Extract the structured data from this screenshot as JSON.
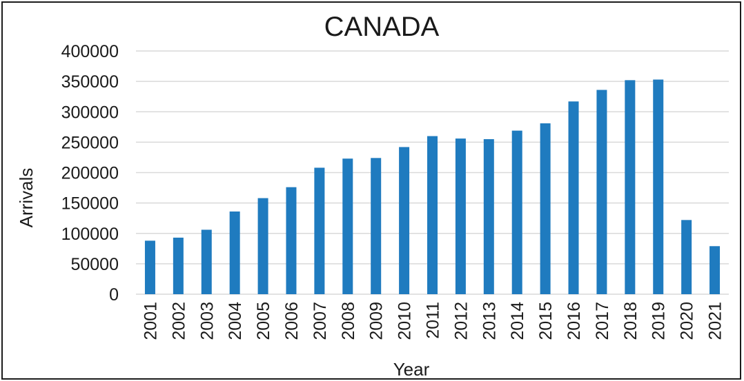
{
  "chart_data": {
    "type": "bar",
    "title": "CANADA",
    "xlabel": "Year",
    "ylabel": "Arrivals",
    "categories": [
      "2001",
      "2002",
      "2003",
      "2004",
      "2005",
      "2006",
      "2007",
      "2008",
      "2009",
      "2010",
      "2011",
      "2012",
      "2013",
      "2014",
      "2015",
      "2016",
      "2017",
      "2018",
      "2019",
      "2020",
      "2021"
    ],
    "values": [
      88000,
      93000,
      106000,
      136000,
      158000,
      176000,
      208000,
      223000,
      224000,
      242000,
      260000,
      256000,
      255000,
      269000,
      281000,
      317000,
      336000,
      352000,
      353000,
      122000,
      79000
    ],
    "yticks": [
      "0",
      "50000",
      "100000",
      "150000",
      "200000",
      "250000",
      "300000",
      "350000",
      "400000"
    ],
    "ylim": [
      0,
      400000
    ],
    "grid": true,
    "legend": "none",
    "bar_color": "#1f7bbf",
    "grid_color": "#d9d9d9"
  }
}
